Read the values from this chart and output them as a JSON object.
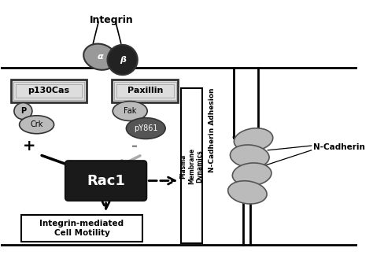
{
  "white": "#ffffff",
  "black": "#000000",
  "dark_gray": "#333333",
  "gray": "#888888",
  "light_gray": "#cccccc",
  "med_gray": "#aaaaaa",
  "integrin_label": "Integrin",
  "alpha_label": "α",
  "beta_label": "β",
  "p130cas_label": "p130Cas",
  "paxillin_label": "Paxillin",
  "p_label": "P",
  "crk_label": "Crk",
  "fak_label": "Fak",
  "py861_label": "pY861",
  "rac1_label": "Rac1",
  "plus_label": "+",
  "minus_label": "-",
  "plasma_label": "Plasma\nMembrane\nDynamics",
  "ncadherin_adhesion_label": "N-Cadherin Adhesion",
  "ncadherin_label": "N-Cadherin",
  "motility_label": "Integrin-mediated\nCell Motility",
  "figsize": [
    4.74,
    3.29
  ],
  "dpi": 100
}
